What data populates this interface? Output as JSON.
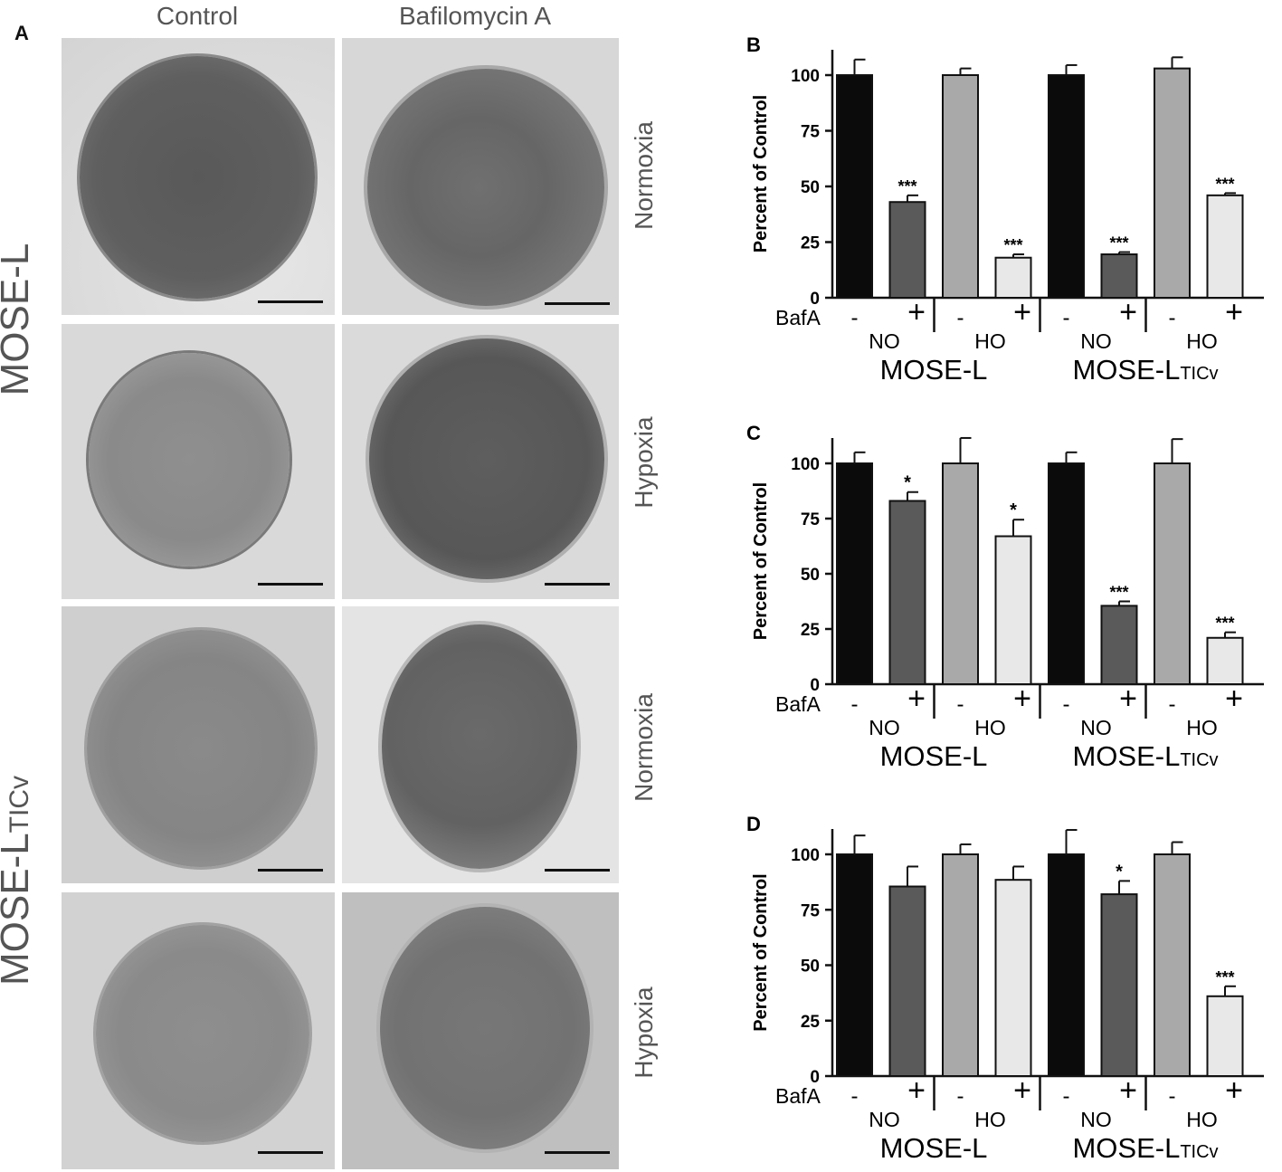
{
  "panel_a": {
    "letter": "A",
    "columns": [
      "Control",
      "Bafilomycin A"
    ],
    "row_groups": [
      {
        "label": "MOSE-L",
        "subscript": ""
      },
      {
        "label": "MOSE-L",
        "subscript": "TICv"
      }
    ],
    "conditions": [
      "Normoxia",
      "Hypoxia",
      "Normoxia",
      "Hypoxia"
    ]
  },
  "colors": {
    "no_control": "#0b0b0b",
    "no_bafa": "#5a5a5a",
    "ho_control": "#a9a9a9",
    "ho_bafa": "#e8e8e8"
  },
  "chart_data": [
    {
      "letter": "B",
      "type": "bar",
      "ylabel": "Percent of Control",
      "ylim": [
        0,
        100
      ],
      "yticks": [
        0,
        25,
        50,
        75,
        100
      ],
      "row_label": "BafA",
      "bafa_signs": [
        "-",
        "+",
        "-",
        "+",
        "-",
        "+",
        "-",
        "+"
      ],
      "oxygen_labels": [
        "NO",
        "HO",
        "NO",
        "HO"
      ],
      "groups": [
        {
          "label": "MOSE-L",
          "subscript": ""
        },
        {
          "label": "MOSE-L",
          "subscript": "TICv"
        }
      ],
      "values": [
        100,
        43,
        100,
        18,
        100,
        19.5,
        103,
        46
      ],
      "errors": [
        7,
        3,
        3,
        1.5,
        4.5,
        1,
        5,
        1
      ],
      "significance": [
        "",
        "***",
        "",
        "***",
        "",
        "***",
        "",
        "***"
      ]
    },
    {
      "letter": "C",
      "type": "bar",
      "ylabel": "Percent of Control",
      "ylim": [
        0,
        100
      ],
      "yticks": [
        0,
        25,
        50,
        75,
        100
      ],
      "row_label": "BafA",
      "bafa_signs": [
        "-",
        "+",
        "-",
        "+",
        "-",
        "+",
        "-",
        "+"
      ],
      "oxygen_labels": [
        "NO",
        "HO",
        "NO",
        "HO"
      ],
      "groups": [
        {
          "label": "MOSE-L",
          "subscript": ""
        },
        {
          "label": "MOSE-L",
          "subscript": "TICv"
        }
      ],
      "values": [
        100,
        83,
        100,
        67,
        100,
        35.5,
        100,
        21
      ],
      "errors": [
        5,
        4,
        11.5,
        7.5,
        5,
        2,
        11,
        2.5
      ],
      "significance": [
        "",
        "*",
        "",
        "*",
        "",
        "***",
        "",
        "***"
      ]
    },
    {
      "letter": "D",
      "type": "bar",
      "ylabel": "Percent of Control",
      "ylim": [
        0,
        100
      ],
      "yticks": [
        0,
        25,
        50,
        75,
        100
      ],
      "row_label": "BafA",
      "bafa_signs": [
        "-",
        "+",
        "-",
        "+",
        "-",
        "+",
        "-",
        "+"
      ],
      "oxygen_labels": [
        "NO",
        "HO",
        "NO",
        "HO"
      ],
      "groups": [
        {
          "label": "MOSE-L",
          "subscript": ""
        },
        {
          "label": "MOSE-L",
          "subscript": "TICv"
        }
      ],
      "values": [
        100,
        85.5,
        100,
        88.5,
        100,
        82,
        100,
        36
      ],
      "errors": [
        8.5,
        9,
        4.5,
        6,
        11,
        6,
        5.5,
        4.5
      ],
      "significance": [
        "",
        "",
        "",
        "",
        "",
        "*",
        "",
        "***"
      ]
    }
  ]
}
